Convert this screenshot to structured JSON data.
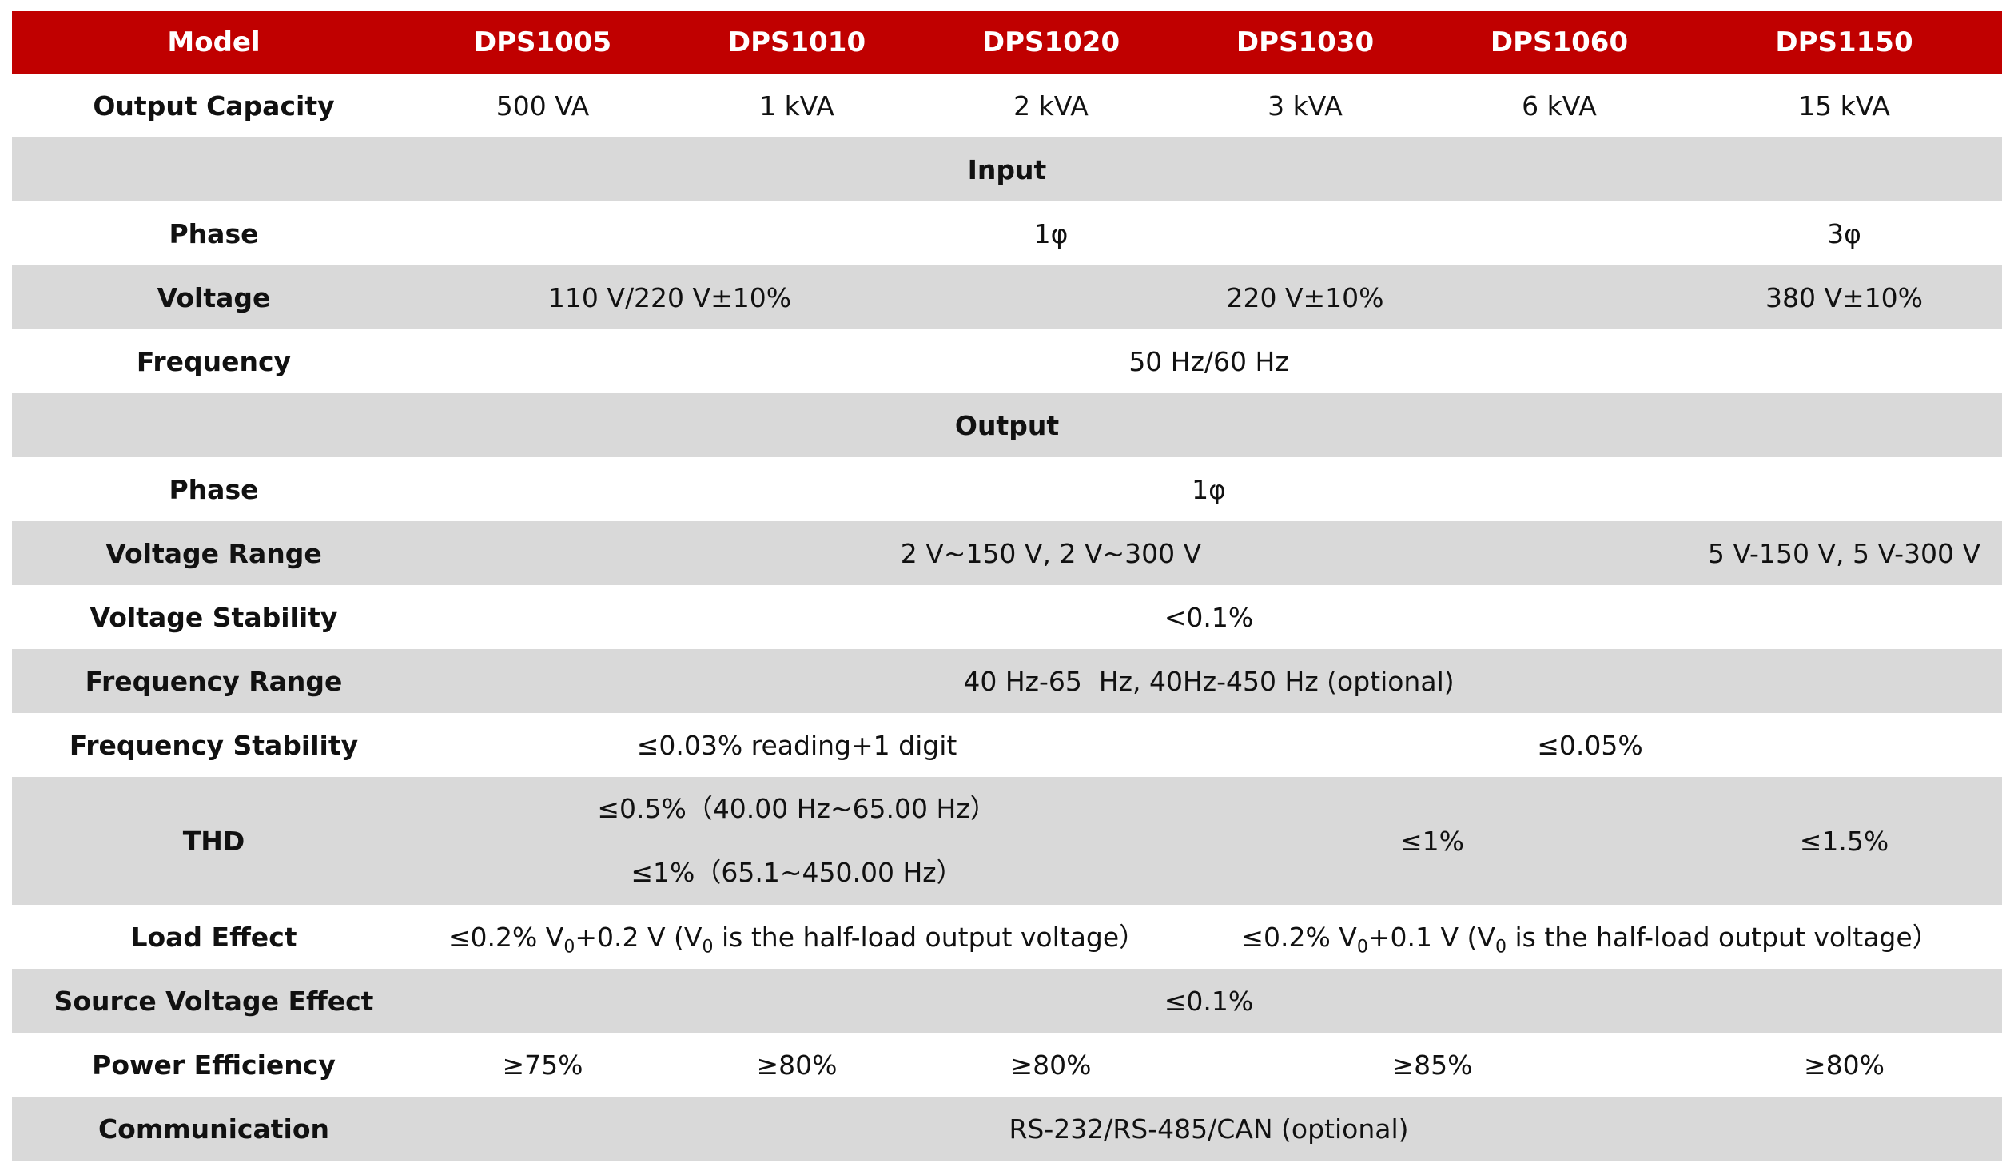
{
  "header": {
    "label": "Model",
    "models": [
      "DPS1005",
      "DPS1010",
      "DPS1020",
      "DPS1030",
      "DPS1060",
      "DPS1150"
    ]
  },
  "output_capacity": {
    "label": "Output Capacity",
    "values": [
      "500 VA",
      "1 kVA",
      "2 kVA",
      "3 kVA",
      "6 kVA",
      "15 kVA"
    ]
  },
  "input": {
    "title": "Input",
    "phase": {
      "label": "Phase",
      "value_1": "1φ",
      "value_2": "3φ"
    },
    "voltage": {
      "label": "Voltage",
      "value_1": "110 V/220 V±10%",
      "value_2": "220 V±10%",
      "value_3": "380 V±10%"
    },
    "frequency": {
      "label": "Frequency",
      "value": "50 Hz/60 Hz"
    }
  },
  "output": {
    "title": "Output",
    "phase": {
      "label": "Phase",
      "value": "1φ"
    },
    "voltage_range": {
      "label": "Voltage Range",
      "value_1": "2 V~150 V, 2 V~300 V",
      "value_2": "5 V-150 V, 5 V-300 V"
    },
    "voltage_stability": {
      "label": "Voltage Stability",
      "value": "<0.1%"
    },
    "frequency_range": {
      "label": "Frequency Range",
      "value": "40 Hz-65  Hz, 40Hz-450 Hz (optional)"
    },
    "frequency_stability": {
      "label": "Frequency Stability",
      "value_1": "≤0.03% reading+1 digit",
      "value_2": "≤0.05%"
    },
    "thd": {
      "label": "THD",
      "line_1": "≤0.5%（40.00 Hz~65.00 Hz）",
      "line_2": "≤1%（65.1~450.00 Hz）",
      "value_2": "≤1%",
      "value_3": "≤1.5%"
    },
    "load_effect": {
      "label": "Load Effect",
      "value_1": {
        "pre": "≤0.2% V",
        "sub": "0",
        "mid": "+0.2 V (V",
        "sub2": "0",
        "post": " is the half-load output voltage）"
      },
      "value_2": {
        "pre": "≤0.2% V",
        "sub": "0",
        "mid": "+0.1 V (V",
        "sub2": "0",
        "post": " is the half-load output voltage）"
      }
    },
    "source_voltage_effect": {
      "label": "Source Voltage Effect",
      "value": "≤0.1%"
    },
    "power_efficiency": {
      "label": "Power Efficiency",
      "value_1": "≥75%",
      "value_2": "≥80%",
      "value_3": "≥80%",
      "value_4": "≥85%",
      "value_5": "≥80%"
    },
    "communication": {
      "label": "Communication",
      "value": "RS-232/RS-485/CAN (optional)"
    }
  }
}
